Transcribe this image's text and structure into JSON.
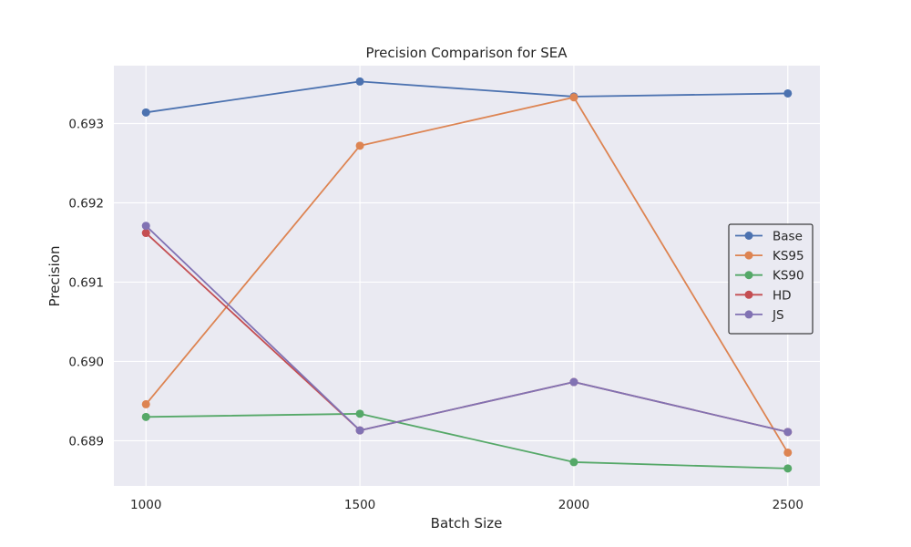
{
  "chart_data": {
    "type": "line",
    "title": "Precision Comparison for SEA",
    "xlabel": "Batch Size",
    "ylabel": "Precision",
    "x": [
      1000,
      1500,
      2000,
      2500
    ],
    "x_tick_labels": [
      "1000",
      "1500",
      "2000",
      "2500"
    ],
    "xlim": [
      925,
      2575
    ],
    "ylim": [
      0.68843,
      0.69373
    ],
    "y_ticks": [
      0.689,
      0.69,
      0.691,
      0.692,
      0.693
    ],
    "y_tick_labels": [
      "0.689",
      "0.690",
      "0.691",
      "0.692",
      "0.693"
    ],
    "grid": true,
    "legend_position": "center-right",
    "background": "#eaeaf2",
    "series": [
      {
        "name": "Base",
        "color": "#4c72b0",
        "values": [
          0.69314,
          0.69353,
          0.69334,
          0.69338
        ]
      },
      {
        "name": "KS95",
        "color": "#dd8452",
        "values": [
          0.68946,
          0.69272,
          0.69333,
          0.68885
        ]
      },
      {
        "name": "KS90",
        "color": "#55a868",
        "values": [
          0.6893,
          0.68934,
          0.68873,
          0.68865
        ]
      },
      {
        "name": "HD",
        "color": "#c44e52",
        "values": [
          0.69162,
          0.68913,
          0.68974,
          0.68911
        ]
      },
      {
        "name": "JS",
        "color": "#8172b3",
        "values": [
          0.69171,
          0.68913,
          0.68974,
          0.68911
        ]
      }
    ]
  }
}
